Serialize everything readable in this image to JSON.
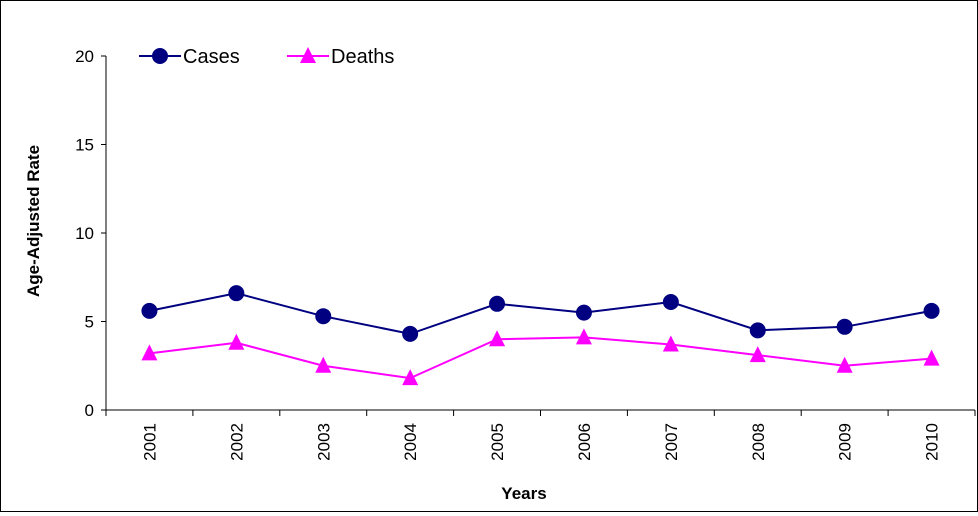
{
  "chart_data": {
    "type": "line",
    "categories": [
      "2001",
      "2002",
      "2003",
      "2004",
      "2005",
      "2006",
      "2007",
      "2008",
      "2009",
      "2010"
    ],
    "series": [
      {
        "name": "Cases",
        "values": [
          5.6,
          6.6,
          5.3,
          4.3,
          6.0,
          5.5,
          6.1,
          4.5,
          4.7,
          5.6
        ],
        "color": "#000080",
        "marker": "circle"
      },
      {
        "name": "Deaths",
        "values": [
          3.2,
          3.8,
          2.5,
          1.8,
          4.0,
          4.1,
          3.7,
          3.1,
          2.5,
          2.9
        ],
        "color": "#ff00ff",
        "marker": "triangle"
      }
    ],
    "yticks": [
      "0",
      "5",
      "10",
      "15",
      "20"
    ],
    "xlabel": "Years",
    "ylabel": "Age-Adjusted Rate",
    "ylim": [
      0,
      20
    ],
    "grid": false,
    "legend": "top-left"
  }
}
